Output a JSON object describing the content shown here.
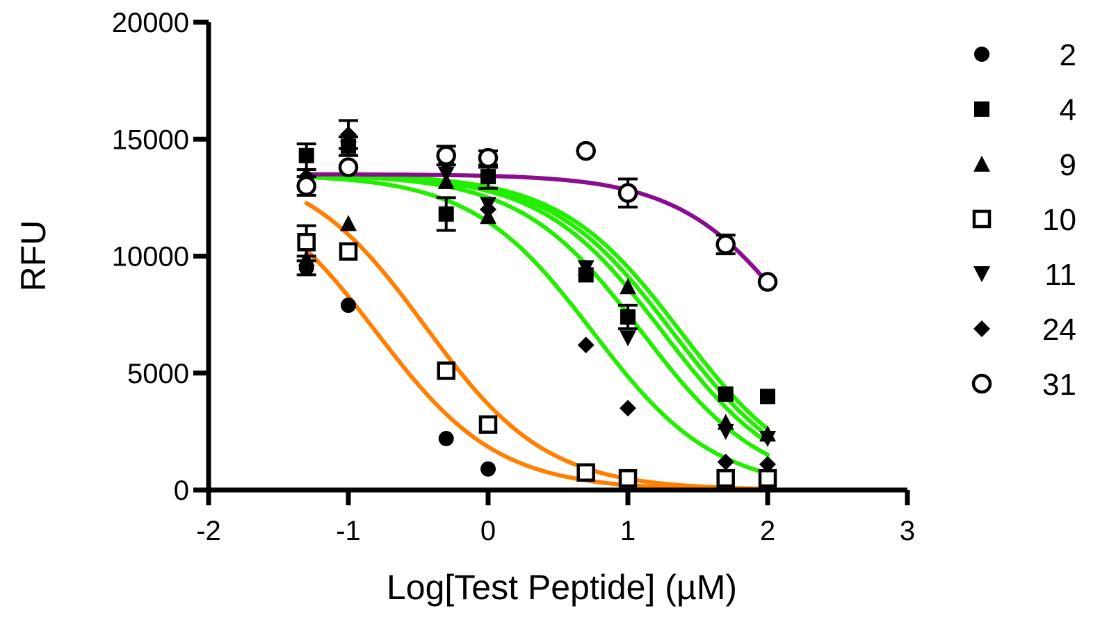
{
  "chart_data": {
    "type": "scatter",
    "xlabel": "Log[Test Peptide] (µM)",
    "ylabel": "RFU",
    "xlim": [
      -2,
      3
    ],
    "ylim": [
      0,
      20000
    ],
    "x_ticks": [
      -2,
      -1,
      0,
      1,
      2,
      3
    ],
    "y_ticks": [
      0,
      5000,
      10000,
      15000,
      20000
    ],
    "x_tick_labels": [
      "-2",
      "-1",
      "0",
      "1",
      "2",
      "3"
    ],
    "y_tick_labels": [
      "0",
      "5000",
      "10000",
      "15000",
      "20000"
    ],
    "grid": false,
    "legend_position": "right",
    "x_doses": [
      -1.3,
      -1,
      -0.3,
      0,
      0.7,
      1,
      1.7,
      2
    ],
    "series": [
      {
        "name": "2",
        "marker": "circle-filled",
        "values": [
          9500,
          7900,
          2200,
          900,
          800,
          450,
          450,
          400
        ],
        "fit_color": "#ff7f00"
      },
      {
        "name": "4",
        "marker": "square-filled",
        "values": [
          14300,
          14700,
          11800,
          13400,
          9200,
          7400,
          4100,
          4000
        ],
        "fit_color": "#22ee00"
      },
      {
        "name": "9",
        "marker": "triangle-up",
        "values": [
          9900,
          11400,
          13200,
          11700,
          9500,
          8700,
          2900,
          2400
        ],
        "fit_color": "#22ee00"
      },
      {
        "name": "10",
        "marker": "square-open",
        "values": [
          10600,
          10200,
          5100,
          2800,
          750,
          500,
          500,
          500
        ],
        "fit_color": "#ff7f00"
      },
      {
        "name": "11",
        "marker": "triangle-down",
        "values": [
          13100,
          14600,
          13500,
          12200,
          9500,
          6500,
          2500,
          2200
        ],
        "fit_color": "#22ee00"
      },
      {
        "name": "24",
        "marker": "diamond-filled",
        "values": [
          13400,
          15200,
          14000,
          12000,
          6200,
          3500,
          1200,
          1100
        ],
        "fit_color": "#22ee00"
      },
      {
        "name": "31",
        "marker": "circle-open",
        "values": [
          13000,
          13800,
          14300,
          14200,
          14500,
          12700,
          10500,
          8900
        ],
        "fit_color": "#8b0d8f"
      }
    ],
    "error_bars": [
      {
        "series": "2",
        "x": -1.3,
        "low": 9200,
        "high": 10000
      },
      {
        "series": "4",
        "x": -1.3,
        "low": 13700,
        "high": 14800
      },
      {
        "series": "4",
        "x": -1,
        "low": 14300,
        "high": 15100
      },
      {
        "series": "4",
        "x": -0.3,
        "low": 11100,
        "high": 12500
      },
      {
        "series": "4",
        "x": 0,
        "low": 12900,
        "high": 13800
      },
      {
        "series": "4",
        "x": 1,
        "low": 6900,
        "high": 7900
      },
      {
        "series": "10",
        "x": -1.3,
        "low": 9800,
        "high": 11300
      },
      {
        "series": "24",
        "x": -1,
        "low": 14600,
        "high": 15800
      },
      {
        "series": "31",
        "x": -1.3,
        "low": 12600,
        "high": 13400
      },
      {
        "series": "31",
        "x": -0.3,
        "low": 13900,
        "high": 14700
      },
      {
        "series": "31",
        "x": 0,
        "low": 13900,
        "high": 14500
      },
      {
        "series": "31",
        "x": 1,
        "low": 12100,
        "high": 13300
      },
      {
        "series": "31",
        "x": 1.7,
        "low": 10100,
        "high": 10900
      }
    ],
    "fit_curves": [
      {
        "color": "#ff7f00",
        "top": 13500,
        "bottom": 0,
        "log_ic50": -0.8,
        "hill": 1.0,
        "x_range": [
          -1.3,
          2
        ]
      },
      {
        "color": "#ff7f00",
        "top": 14000,
        "bottom": 0,
        "log_ic50": -0.45,
        "hill": 1.0,
        "x_range": [
          -1.3,
          2
        ]
      },
      {
        "color": "#22ee00",
        "top": 13500,
        "bottom": 0,
        "log_ic50": 0.75,
        "hill": 1.0,
        "x_range": [
          -1.3,
          2
        ]
      },
      {
        "color": "#22ee00",
        "top": 13500,
        "bottom": 0,
        "log_ic50": 1.1,
        "hill": 1.0,
        "x_range": [
          -1.3,
          2
        ]
      },
      {
        "color": "#22ee00",
        "top": 13500,
        "bottom": 0,
        "log_ic50": 1.25,
        "hill": 1.0,
        "x_range": [
          -1.3,
          2
        ]
      },
      {
        "color": "#22ee00",
        "top": 13500,
        "bottom": 0,
        "log_ic50": 1.32,
        "hill": 1.0,
        "x_range": [
          -1.3,
          2
        ]
      },
      {
        "color": "#22ee00",
        "top": 13500,
        "bottom": 0,
        "log_ic50": 1.38,
        "hill": 1.0,
        "x_range": [
          -1.3,
          2
        ]
      },
      {
        "color": "#8b0d8f",
        "top": 13500,
        "bottom": 0,
        "log_ic50": 2.28,
        "hill": 1.0,
        "x_range": [
          -1.3,
          2
        ]
      }
    ]
  }
}
